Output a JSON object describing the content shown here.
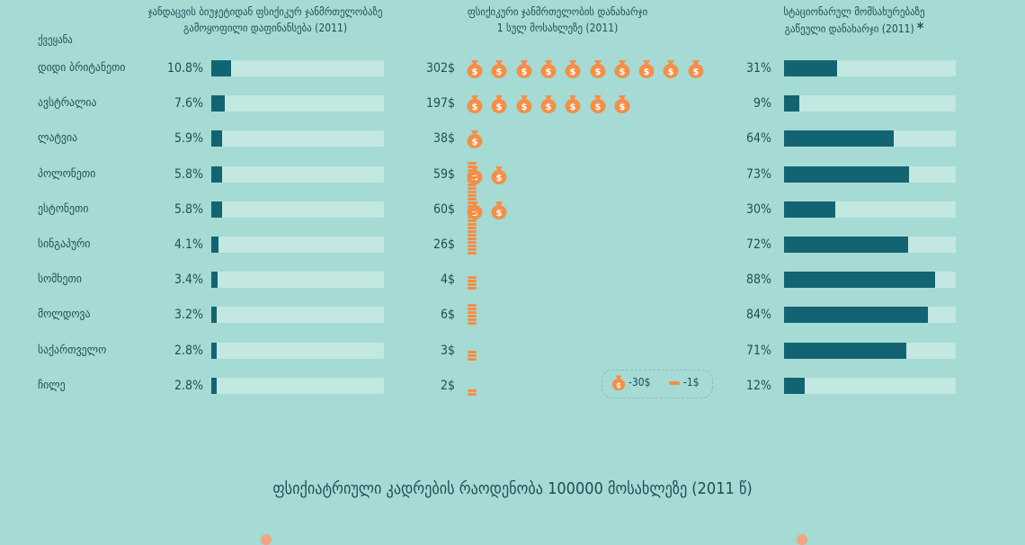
{
  "headers": {
    "col1_line1": "ჯანდაცვის ბიუჯეტიდან ფსიქიკურ ჯანმრთელობაზე",
    "col1_line2": "გამოყოფილი დაფინანსება (2011)",
    "col2_line1": "ფსიქიკური ჯანმრთელობის დანახარჯი",
    "col2_line2": "1 სულ მოსახლეზე (2011)",
    "col3_line1": "სტაციონარულ მომსახურებაზე",
    "col3_line2": "გაწეული დანახარჯი (2011)",
    "col3_marker": "*",
    "country_column": "ქვეყანა"
  },
  "legend": {
    "bag_label": "-30$",
    "coin_label": "-1$",
    "bag_icon": "money-bag-icon",
    "coin_icon": "coin-icon"
  },
  "subtitle": "ფსიქიატრიული კადრების რაოდენობა 100000 მოსახლეზე (2011 წ)",
  "colors": {
    "background": "#a5dbd4",
    "bar_fill": "#136472",
    "bar_track": "#c3e7e1",
    "icon_orange": "#f58e46",
    "text": "#1d4e58"
  },
  "chart_data": {
    "type": "table",
    "categories": [
      "დიდი ბრიტანეთი",
      "ავსტრალია",
      "ლატვია",
      "პოლონეთი",
      "ესტონეთი",
      "სინგაპური",
      "სომხეთი",
      "მოლდოვა",
      "საქართველო",
      "ჩილე"
    ],
    "columns": [
      {
        "name": "ჯანდაცვის ბიუჯეტიდან ფსიქიკურ ჯანმრთელობაზე გამოყოფილი დაფინანსება (2011)",
        "type": "bar",
        "labels": [
          "10.8%",
          "7.6%",
          "5.9%",
          "5.8%",
          "5.8%",
          "4.1%",
          "3.4%",
          "3.2%",
          "2.8%",
          "2.8%"
        ],
        "values": [
          10.8,
          7.6,
          5.9,
          5.8,
          5.8,
          4.1,
          3.4,
          3.2,
          2.8,
          2.8
        ],
        "ylim": [
          0,
          100
        ]
      },
      {
        "name": "ფსიქიკური ჯანმრთელობის დანახარჯი 1 სულ მოსახლეზე (2011)",
        "type": "pictogram",
        "labels": [
          "302$",
          "197$",
          "38$",
          "59$",
          "60$",
          "26$",
          "4$",
          "6$",
          "3$",
          "2$"
        ],
        "values": [
          302,
          197,
          38,
          59,
          60,
          26,
          4,
          6,
          3,
          2
        ],
        "bag_value": 30,
        "coin_value": 1
      },
      {
        "name": "სტაციონარულ მომსახურებაზე გაწეული დანახარჯი (2011)",
        "type": "bar",
        "labels": [
          "31%",
          "9%",
          "64%",
          "73%",
          "30%",
          "72%",
          "88%",
          "84%",
          "71%",
          "12%"
        ],
        "values": [
          31,
          9,
          64,
          73,
          30,
          72,
          88,
          84,
          71,
          12
        ],
        "ylim": [
          0,
          100
        ]
      }
    ]
  }
}
